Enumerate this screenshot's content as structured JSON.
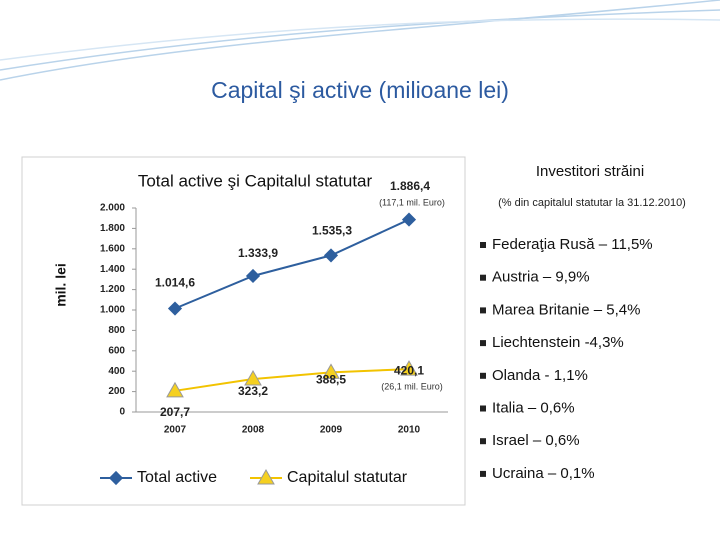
{
  "title": "Capital şi active (milioane lei)",
  "chart_data": {
    "type": "line",
    "title": "Total active şi Capitalul statutar",
    "y_label": "mil. lei",
    "categories": [
      "2007",
      "2008",
      "2009",
      "2010"
    ],
    "series": [
      {
        "name": "Total active",
        "color": "#2e5f9e",
        "values": [
          1014.6,
          1333.9,
          1535.3,
          1886.4
        ],
        "value_labels": [
          "1.014,6",
          "1.333,9",
          "1.535,3",
          "1.886,4"
        ]
      },
      {
        "name": "Capitalul statutar",
        "color": "#f2c300",
        "values": [
          207.7,
          323.2,
          388.5,
          420.1
        ],
        "value_labels": [
          "207,7",
          "323,2",
          "388,5",
          "420,1"
        ]
      }
    ],
    "ylim": [
      0,
      2000
    ],
    "yticks": [
      0,
      200,
      400,
      600,
      800,
      {
        "value": 1000,
        "label": "1.000"
      },
      {
        "value": 1200,
        "label": "1.200"
      },
      {
        "value": 1400,
        "label": "1.400"
      },
      {
        "value": 1600,
        "label": "1.600"
      },
      {
        "value": 1800,
        "label": "1.800"
      },
      {
        "value": 2000,
        "label": "2.000"
      }
    ],
    "grid": false,
    "annotations": [
      "(117,1 mil. Euro)",
      "(26,1 mil. Euro)"
    ]
  },
  "panel": {
    "heading": "Investitori străini",
    "subheading": "(% din capitalul statutar la 31.12.2010)",
    "items": [
      "Federaţia Rusă – 11,5%",
      "Austria – 9,9%",
      "Marea Britanie – 5,4%",
      "Liechtenstein -4,3%",
      "Olanda - 1,1%",
      "Italia – 0,6%",
      "Israel – 0,6%",
      "Ucraina – 0,1%"
    ]
  }
}
